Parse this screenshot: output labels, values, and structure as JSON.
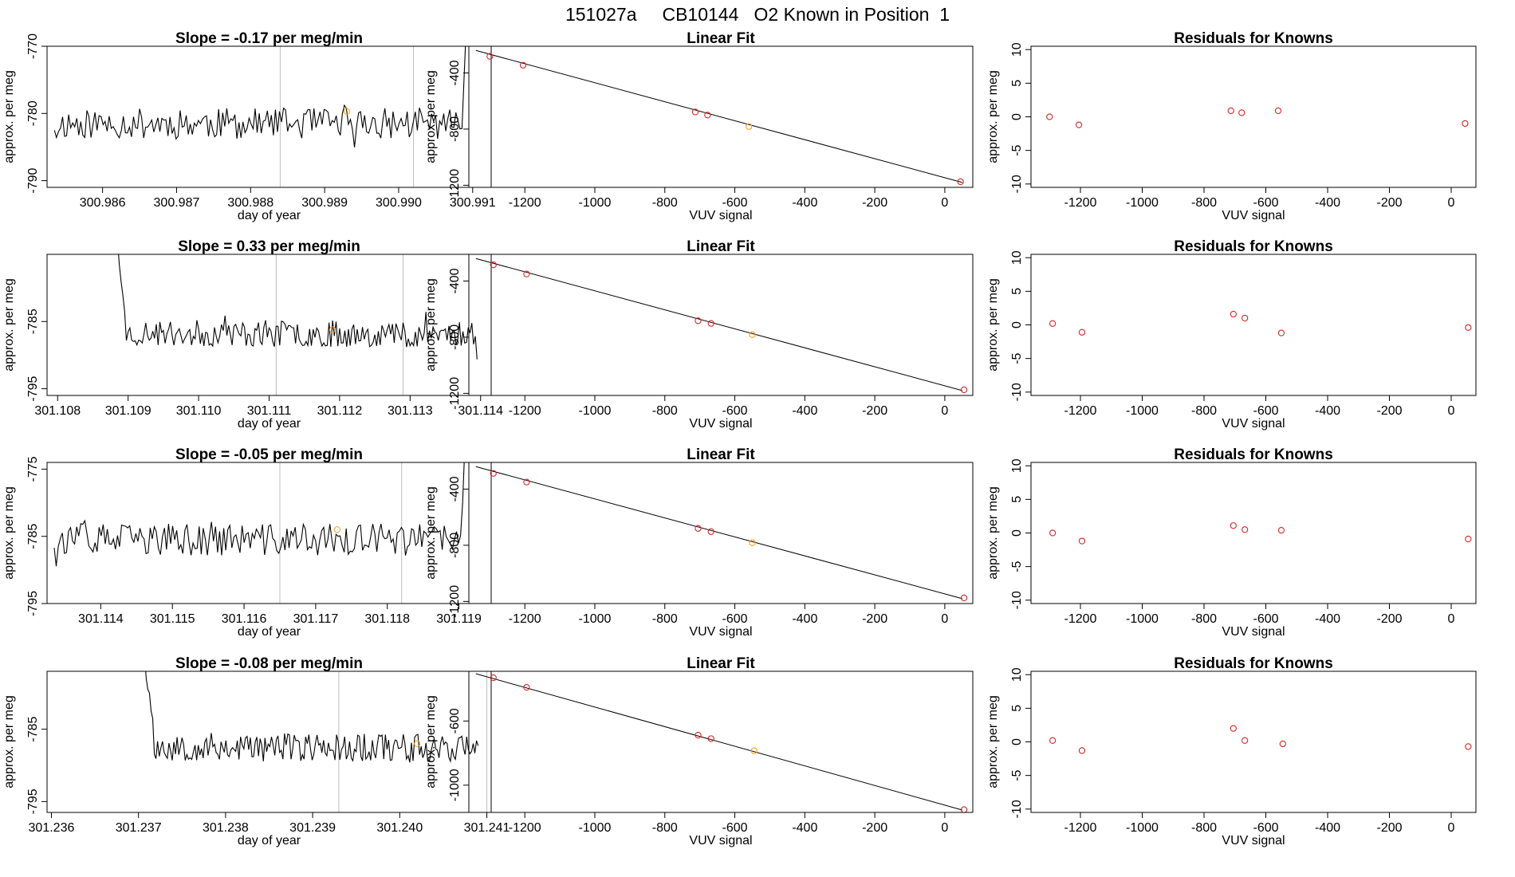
{
  "figure": {
    "title": "151027a     CB10144   O2 Known in Position  1",
    "colors": {
      "line": "#000000",
      "vline": "#bdbdbd",
      "point": "#d62728",
      "highlight": "#ff9f1c"
    }
  },
  "chart_data": [
    {
      "type": "line",
      "id": "ts1",
      "title": "Slope =  -0.17  per meg/min",
      "xlabel": "day of year",
      "ylabel": "approx. per meg",
      "xlim": [
        300.98525,
        300.99125
      ],
      "ylim": [
        -791,
        -770
      ],
      "xticks": [
        300.986,
        300.987,
        300.988,
        300.989,
        300.99,
        300.991
      ],
      "xtick_labels": [
        "300.986",
        "300.987",
        "300.988",
        "300.989",
        "300.990",
        "300.991"
      ],
      "yticks": [
        -790,
        -780,
        -770
      ],
      "ytick_labels": [
        "-790",
        "-780",
        "-770"
      ],
      "vlines": [
        300.9884,
        300.9902
      ],
      "marker": {
        "x": 300.9893,
        "y": -779.7
      },
      "series": {
        "x_start": 300.98535,
        "x_end": 300.99091,
        "base": -781.5,
        "amp": 2.3,
        "seed": 11,
        "head": [
          -782.5,
          -783.6
        ],
        "tail": [
          -775,
          -768
        ]
      }
    },
    {
      "type": "scatter",
      "id": "fit1",
      "title": "Linear Fit",
      "xlabel": "VUV signal",
      "ylabel": "approx. per meg",
      "xlim": [
        -1360,
        80
      ],
      "ylim": [
        -1215,
        -210
      ],
      "xticks": [
        -1200,
        -1000,
        -800,
        -600,
        -400,
        -200,
        0
      ],
      "xtick_labels": [
        "-1200",
        "-1000",
        "-800",
        "-600",
        "-400",
        "-200",
        "0"
      ],
      "yticks": [
        -1200,
        -800,
        -400
      ],
      "ytick_labels": [
        "-1200",
        "-800",
        "-400"
      ],
      "fit_line": {
        "x": [
          -1340,
          50
        ],
        "y": [
          -240,
          -1180
        ]
      },
      "points": [
        {
          "x": -1300,
          "y": -282
        },
        {
          "x": -1205,
          "y": -345
        },
        {
          "x": -713,
          "y": -678
        },
        {
          "x": -678,
          "y": -700
        },
        {
          "x": -560,
          "y": -782,
          "highlight": true
        },
        {
          "x": 45,
          "y": -1175
        }
      ]
    },
    {
      "type": "scatter",
      "id": "res1",
      "title": "Residuals for Knowns",
      "xlabel": "VUV signal",
      "ylabel": "approx. per meg",
      "xlim": [
        -1360,
        80
      ],
      "ylim": [
        -10.5,
        10.5
      ],
      "xticks": [
        -1200,
        -1000,
        -800,
        -600,
        -400,
        -200,
        0
      ],
      "xtick_labels": [
        "-1200",
        "-1000",
        "-800",
        "-600",
        "-400",
        "-200",
        "0"
      ],
      "yticks": [
        -10,
        -5,
        0,
        5,
        10
      ],
      "ytick_labels": [
        "-10",
        "-5",
        "0",
        "5",
        "10"
      ],
      "points": [
        {
          "x": -1300,
          "y": 0.0
        },
        {
          "x": -1205,
          "y": -1.2
        },
        {
          "x": -713,
          "y": 0.9
        },
        {
          "x": -678,
          "y": 0.6
        },
        {
          "x": -560,
          "y": 0.9
        },
        {
          "x": 45,
          "y": -1.0
        }
      ]
    },
    {
      "type": "line",
      "id": "ts2",
      "title": "Slope =  0.33  per meg/min",
      "xlabel": "day of year",
      "ylabel": "approx. per meg",
      "xlim": [
        301.10785,
        301.11415
      ],
      "ylim": [
        -796,
        -775
      ],
      "xticks": [
        301.108,
        301.109,
        301.11,
        301.111,
        301.112,
        301.113,
        301.114
      ],
      "xtick_labels": [
        "301.108",
        "301.109",
        "301.110",
        "301.111",
        "301.112",
        "301.113",
        "301.114"
      ],
      "yticks": [
        -795,
        -785
      ],
      "ytick_labels": [
        "-795",
        "-785"
      ],
      "vlines": [
        301.1111,
        301.1129
      ],
      "marker": {
        "x": 301.1119,
        "y": -786.2
      },
      "series": {
        "x_start": 301.10885,
        "x_end": 301.11395,
        "base": -786.8,
        "amp": 2.0,
        "seed": 23,
        "head": [
          -773,
          -776.5,
          -779,
          -781,
          -783.5
        ],
        "tail": []
      }
    },
    {
      "type": "scatter",
      "id": "fit2",
      "title": "Linear Fit",
      "xlabel": "VUV signal",
      "ylabel": "approx. per meg",
      "xlim": [
        -1360,
        80
      ],
      "ylim": [
        -1215,
        -210
      ],
      "xticks": [
        -1200,
        -1000,
        -800,
        -600,
        -400,
        -200,
        0
      ],
      "xtick_labels": [
        "-1200",
        "-1000",
        "-800",
        "-600",
        "-400",
        "-200",
        "0"
      ],
      "yticks": [
        -1200,
        -800,
        -400
      ],
      "ytick_labels": [
        "-1200",
        "-800",
        "-400"
      ],
      "fit_line": {
        "x": [
          -1340,
          50
        ],
        "y": [
          -240,
          -1180
        ]
      },
      "points": [
        {
          "x": -1290,
          "y": -285
        },
        {
          "x": -1195,
          "y": -350
        },
        {
          "x": -705,
          "y": -683
        },
        {
          "x": -668,
          "y": -702
        },
        {
          "x": -550,
          "y": -782,
          "highlight": true
        },
        {
          "x": 55,
          "y": -1175
        }
      ]
    },
    {
      "type": "scatter",
      "id": "res2",
      "title": "Residuals for Knowns",
      "xlabel": "VUV signal",
      "ylabel": "approx. per meg",
      "xlim": [
        -1360,
        80
      ],
      "ylim": [
        -10.5,
        10.5
      ],
      "xticks": [
        -1200,
        -1000,
        -800,
        -600,
        -400,
        -200,
        0
      ],
      "xtick_labels": [
        "-1200",
        "-1000",
        "-800",
        "-600",
        "-400",
        "-200",
        "0"
      ],
      "yticks": [
        -10,
        -5,
        0,
        5,
        10
      ],
      "ytick_labels": [
        "-10",
        "-5",
        "0",
        "5",
        "10"
      ],
      "points": [
        {
          "x": -1290,
          "y": 0.2
        },
        {
          "x": -1195,
          "y": -1.1
        },
        {
          "x": -705,
          "y": 1.6
        },
        {
          "x": -668,
          "y": 1.0
        },
        {
          "x": -550,
          "y": -1.2
        },
        {
          "x": 55,
          "y": -0.4
        }
      ]
    },
    {
      "type": "line",
      "id": "ts3",
      "title": "Slope =  -0.05  per meg/min",
      "xlabel": "day of year",
      "ylabel": "approx. per meg",
      "xlim": [
        301.11325,
        301.11945
      ],
      "ylim": [
        -795,
        -774
      ],
      "xticks": [
        301.114,
        301.115,
        301.116,
        301.117,
        301.118,
        301.119
      ],
      "xtick_labels": [
        "301.114",
        "301.115",
        "301.116",
        "301.117",
        "301.118",
        "301.119"
      ],
      "yticks": [
        -795,
        -785,
        -775
      ],
      "ytick_labels": [
        "-795",
        "-785",
        "-775"
      ],
      "vlines": [
        301.1165,
        301.1182
      ],
      "marker": {
        "x": 301.1173,
        "y": -784.0
      },
      "series": {
        "x_start": 301.11335,
        "x_end": 301.11908,
        "base": -785.5,
        "amp": 2.4,
        "seed": 37,
        "head": [],
        "tail": [
          -780,
          -772
        ]
      }
    },
    {
      "type": "scatter",
      "id": "fit3",
      "title": "Linear Fit",
      "xlabel": "VUV signal",
      "ylabel": "approx. per meg",
      "xlim": [
        -1360,
        80
      ],
      "ylim": [
        -1215,
        -210
      ],
      "xticks": [
        -1200,
        -1000,
        -800,
        -600,
        -400,
        -200,
        0
      ],
      "xtick_labels": [
        "-1200",
        "-1000",
        "-800",
        "-600",
        "-400",
        "-200",
        "0"
      ],
      "yticks": [
        -1200,
        -800,
        -400
      ],
      "ytick_labels": [
        "-1200",
        "-800",
        "-400"
      ],
      "fit_line": {
        "x": [
          -1340,
          50
        ],
        "y": [
          -240,
          -1180
        ]
      },
      "points": [
        {
          "x": -1290,
          "y": -288
        },
        {
          "x": -1195,
          "y": -350
        },
        {
          "x": -705,
          "y": -680
        },
        {
          "x": -668,
          "y": -703
        },
        {
          "x": -550,
          "y": -782,
          "highlight": true
        },
        {
          "x": 55,
          "y": -1175
        }
      ]
    },
    {
      "type": "scatter",
      "id": "res3",
      "title": "Residuals for Knowns",
      "xlabel": "VUV signal",
      "ylabel": "approx. per meg",
      "xlim": [
        -1360,
        80
      ],
      "ylim": [
        -10.5,
        10.5
      ],
      "xticks": [
        -1200,
        -1000,
        -800,
        -600,
        -400,
        -200,
        0
      ],
      "xtick_labels": [
        "-1200",
        "-1000",
        "-800",
        "-600",
        "-400",
        "-200",
        "0"
      ],
      "yticks": [
        -10,
        -5,
        0,
        5,
        10
      ],
      "ytick_labels": [
        "-10",
        "-5",
        "0",
        "5",
        "10"
      ],
      "points": [
        {
          "x": -1290,
          "y": 0.0
        },
        {
          "x": -1195,
          "y": -1.2
        },
        {
          "x": -705,
          "y": 1.1
        },
        {
          "x": -668,
          "y": 0.5
        },
        {
          "x": -550,
          "y": 0.4
        },
        {
          "x": 55,
          "y": -0.9
        }
      ]
    },
    {
      "type": "line",
      "id": "ts4",
      "title": "Slope =  -0.08  per meg/min",
      "xlabel": "day of year",
      "ylabel": "approx. per meg",
      "xlim": [
        301.23595,
        301.24105
      ],
      "ylim": [
        -796.5,
        -777
      ],
      "xticks": [
        301.236,
        301.237,
        301.238,
        301.239,
        301.24,
        301.241
      ],
      "xtick_labels": [
        "301.236",
        "301.237",
        "301.238",
        "301.239",
        "301.240",
        "301.241"
      ],
      "yticks": [
        -795,
        -785
      ],
      "ytick_labels": [
        "-795",
        "-785"
      ],
      "vlines": [
        301.2393,
        301.241
      ],
      "marker": {
        "x": 301.2402,
        "y": -787.0
      },
      "series": {
        "x_start": 301.23707,
        "x_end": 301.2409,
        "base": -787.5,
        "amp": 2.0,
        "seed": 53,
        "head": [
          -775,
          -778,
          -779.5,
          -780,
          -782.5,
          -783.5
        ],
        "tail": []
      }
    },
    {
      "type": "scatter",
      "id": "fit4",
      "title": "Linear Fit",
      "xlabel": "VUV signal",
      "ylabel": "approx. per meg",
      "xlim": [
        -1360,
        80
      ],
      "ylim": [
        -1170,
        -290
      ],
      "xticks": [
        -1200,
        -1000,
        -800,
        -600,
        -400,
        -200,
        0
      ],
      "xtick_labels": [
        "-1200",
        "-1000",
        "-800",
        "-600",
        "-400",
        "-200",
        "0"
      ],
      "yticks": [
        -1000,
        -600
      ],
      "ytick_labels": [
        "-1000",
        "-600"
      ],
      "fit_line": {
        "x": [
          -1340,
          50
        ],
        "y": [
          -305,
          -1155
        ]
      },
      "points": [
        {
          "x": -1290,
          "y": -330
        },
        {
          "x": -1195,
          "y": -390
        },
        {
          "x": -705,
          "y": -688
        },
        {
          "x": -668,
          "y": -710
        },
        {
          "x": -545,
          "y": -785,
          "highlight": true
        },
        {
          "x": 55,
          "y": -1153
        }
      ]
    },
    {
      "type": "scatter",
      "id": "res4",
      "title": "Residuals for Knowns",
      "xlabel": "VUV signal",
      "ylabel": "approx. per meg",
      "xlim": [
        -1360,
        80
      ],
      "ylim": [
        -10.5,
        10.5
      ],
      "xticks": [
        -1200,
        -1000,
        -800,
        -600,
        -400,
        -200,
        0
      ],
      "xtick_labels": [
        "-1200",
        "-1000",
        "-800",
        "-600",
        "-400",
        "-200",
        "0"
      ],
      "yticks": [
        -10,
        -5,
        0,
        5,
        10
      ],
      "ytick_labels": [
        "-10",
        "-5",
        "0",
        "5",
        "10"
      ],
      "points": [
        {
          "x": -1290,
          "y": 0.2
        },
        {
          "x": -1195,
          "y": -1.3
        },
        {
          "x": -705,
          "y": 2.0
        },
        {
          "x": -668,
          "y": 0.2
        },
        {
          "x": -545,
          "y": -0.3
        },
        {
          "x": 55,
          "y": -0.7
        }
      ]
    }
  ]
}
